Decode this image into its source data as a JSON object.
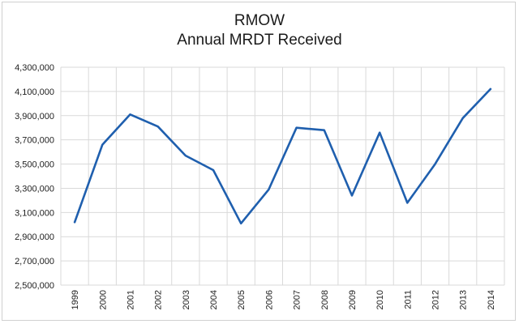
{
  "chart_data": {
    "type": "line",
    "title": "RMOW",
    "subtitle": "Annual MRDT Received",
    "xlabel": "",
    "ylabel": "",
    "categories": [
      "1999",
      "2000",
      "2001",
      "2002",
      "2003",
      "2004",
      "2005",
      "2006",
      "2007",
      "2008",
      "2009",
      "2010",
      "2011",
      "2012",
      "2013",
      "2014"
    ],
    "series": [
      {
        "values": [
          3020000,
          3660000,
          3910000,
          3810000,
          3570000,
          3450000,
          3010000,
          3290000,
          3800000,
          3780000,
          3240000,
          3760000,
          3180000,
          3500000,
          3880000,
          4120000
        ]
      }
    ],
    "ylim": [
      2500000,
      4300000
    ],
    "y_ticks": [
      "2,500,000",
      "2,700,000",
      "2,900,000",
      "3,100,000",
      "3,300,000",
      "3,500,000",
      "3,700,000",
      "3,900,000",
      "4,100,000",
      "4,300,000"
    ],
    "grid": "vertical and horizontal",
    "legend": "none",
    "line_color": "#1f5fae",
    "grid_color": "#d9d9d9"
  }
}
